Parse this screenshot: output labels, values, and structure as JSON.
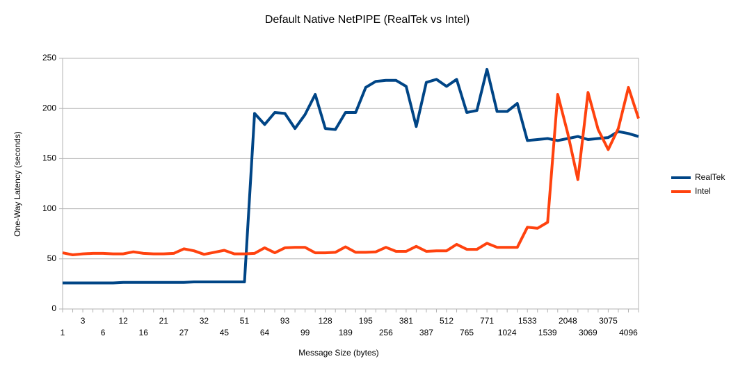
{
  "chart_data": {
    "type": "line",
    "title": "Default Native NetPIPE (RealTek vs Intel)",
    "x_label": "Message Size (bytes)",
    "y_label": "One-Way Latency (seconds)",
    "categories": [
      "1",
      null,
      "3",
      null,
      "6",
      null,
      "12",
      null,
      "16",
      null,
      "21",
      null,
      "27",
      null,
      "32",
      null,
      "45",
      null,
      "51",
      null,
      "64",
      null,
      "93",
      null,
      "99",
      null,
      "128",
      null,
      "189",
      null,
      "195",
      null,
      "256",
      null,
      "381",
      null,
      "387",
      null,
      "512",
      null,
      "765",
      null,
      "771",
      null,
      "1024",
      null,
      "1533",
      null,
      "1539",
      null,
      "2048",
      null,
      "3069",
      null,
      "3075",
      null,
      "4096",
      null
    ],
    "series": [
      {
        "name": "RealTek",
        "color": "#004586",
        "values": [
          26,
          26,
          26,
          26,
          26,
          26,
          26.5,
          26.5,
          26.5,
          26.5,
          26.5,
          26.5,
          26.5,
          27,
          27,
          27,
          27,
          27,
          27,
          195,
          184,
          196,
          195,
          180,
          194,
          214,
          180,
          179,
          196,
          196,
          221,
          227,
          228,
          228,
          222,
          182,
          226,
          229,
          222,
          229,
          196,
          198,
          239,
          197,
          197,
          205,
          168,
          169,
          170,
          168,
          170,
          172,
          169,
          170,
          171,
          177,
          175,
          172
        ]
      },
      {
        "name": "Intel",
        "color": "#ff420e",
        "values": [
          56,
          54,
          55,
          55.5,
          55.5,
          55,
          55,
          57,
          55.5,
          55,
          55,
          55.5,
          60,
          58,
          54.5,
          56.5,
          58.5,
          55,
          55,
          55.5,
          61,
          56,
          61,
          61.5,
          61.5,
          56,
          56,
          56.5,
          62,
          56.5,
          56.5,
          57,
          61.5,
          57.5,
          57.5,
          62.5,
          57.5,
          58,
          58,
          64.5,
          59.5,
          59.5,
          65.5,
          61.5,
          61.5,
          61.5,
          81.5,
          80.5,
          86.5,
          214,
          175,
          129,
          216,
          179,
          159,
          180,
          221,
          190
        ]
      }
    ],
    "ylim": [
      0,
      250
    ],
    "yticks": [
      0,
      50,
      100,
      150,
      200,
      250
    ],
    "grid": true,
    "legend": "right"
  }
}
